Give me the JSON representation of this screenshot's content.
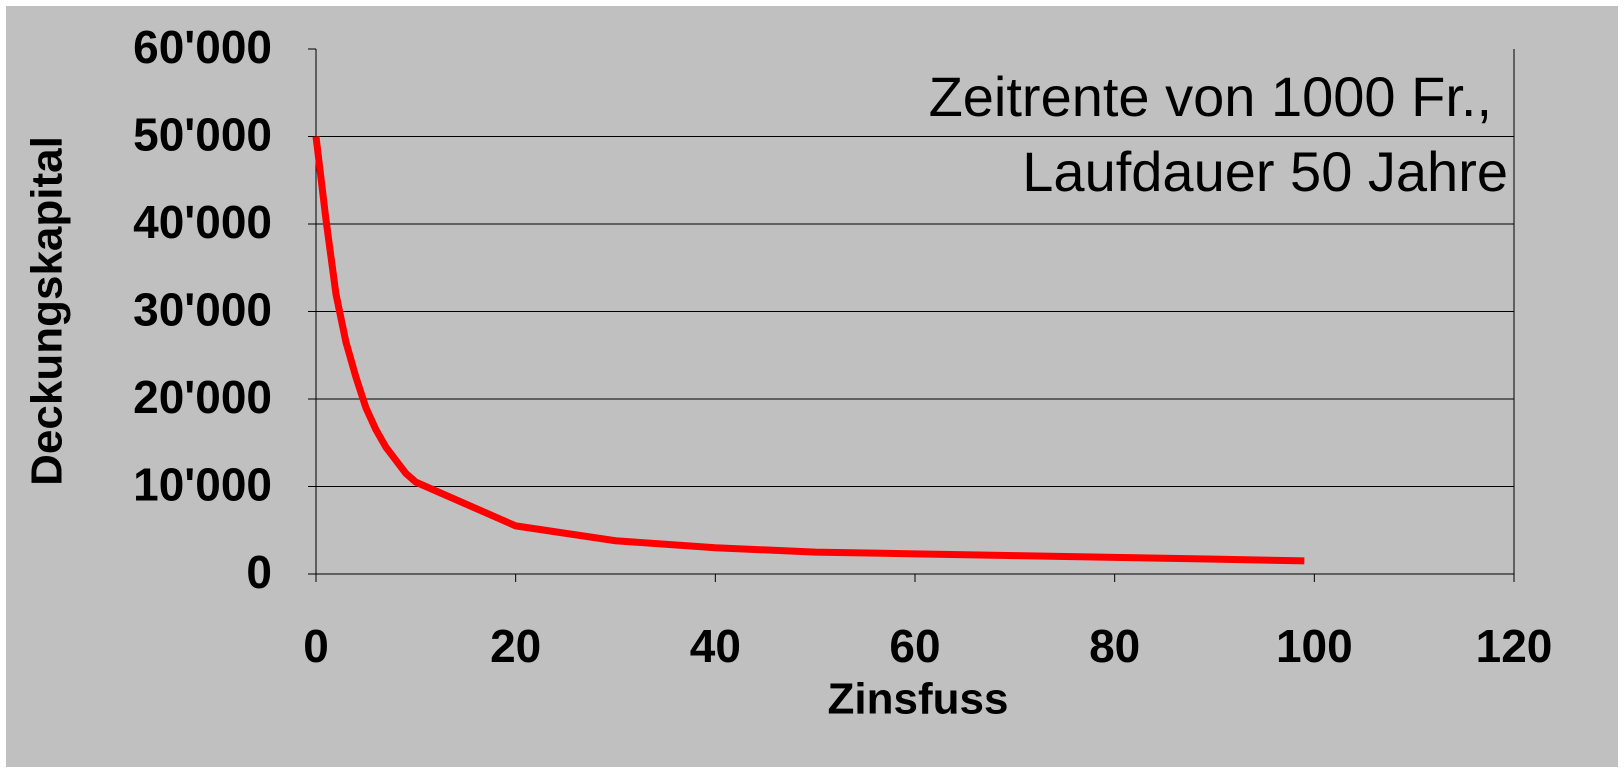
{
  "chart_data": {
    "type": "line",
    "annotation": [
      "Zeitrente von 1000 Fr.,",
      "Laufdauer 50 Jahre"
    ],
    "xlabel": "Zinsfuss",
    "ylabel": "Deckungskapital",
    "x": [
      0,
      1,
      2,
      3,
      4,
      5,
      6,
      7,
      8,
      9,
      10,
      20,
      30,
      40,
      50,
      60,
      70,
      80,
      90,
      99
    ],
    "series": [
      {
        "name": "Deckungskapital",
        "color": "#ff0000",
        "values": [
          50000,
          40500,
          32000,
          26500,
          22500,
          19000,
          16500,
          14500,
          13000,
          11500,
          10500,
          5500,
          3800,
          3000,
          2500,
          2300,
          2100,
          1900,
          1700,
          1500
        ]
      }
    ],
    "xlim": [
      0,
      120
    ],
    "xticks": [
      0,
      20,
      40,
      60,
      80,
      100,
      120
    ],
    "ylim": [
      0,
      60000
    ],
    "yticks": [
      0,
      {
        "value": 10000,
        "label": "10'000"
      },
      {
        "value": 20000,
        "label": "20'000"
      },
      {
        "value": 30000,
        "label": "30'000"
      },
      {
        "value": 40000,
        "label": "40'000"
      },
      {
        "value": 50000,
        "label": "50'000"
      },
      {
        "value": 60000,
        "label": "60'000"
      }
    ],
    "grid": true
  }
}
